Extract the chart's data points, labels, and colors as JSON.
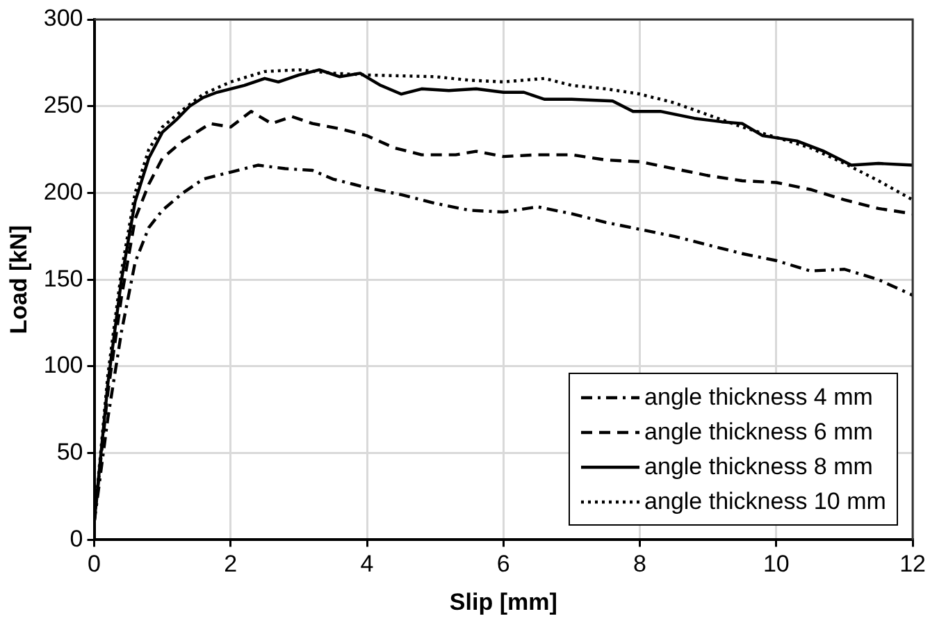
{
  "chart_data": {
    "type": "line",
    "xlabel": "Slip [mm]",
    "ylabel": "Load [kN]",
    "xlim": [
      0,
      12
    ],
    "xticks": [
      0,
      2,
      4,
      6,
      8,
      10,
      12
    ],
    "ylim": [
      0,
      300
    ],
    "yticks": [
      0,
      50,
      100,
      150,
      200,
      250,
      300
    ],
    "grid": true,
    "legend": "bottom right",
    "marker": "none",
    "series": [
      {
        "name": "angle thickness 4 mm",
        "color": "#000000",
        "line_style": "dashdot",
        "x": [
          0,
          0.2,
          0.4,
          0.6,
          0.8,
          1,
          1.3,
          1.6,
          2,
          2.4,
          2.8,
          3.2,
          3.5,
          4,
          4.5,
          5,
          5.5,
          6,
          6.5,
          7,
          7.5,
          8,
          8.5,
          9,
          9.5,
          10,
          10.5,
          11,
          11.5,
          12
        ],
        "values": [
          10,
          70,
          120,
          160,
          180,
          190,
          200,
          208,
          212,
          216,
          214,
          213,
          208,
          203,
          199,
          194,
          190,
          189,
          192,
          188,
          183,
          179,
          175,
          170,
          165,
          161,
          155,
          156,
          150,
          141
        ]
      },
      {
        "name": "angle thickness 6 mm",
        "color": "#000000",
        "line_style": "dashed",
        "x": [
          0,
          0.2,
          0.4,
          0.6,
          0.8,
          1,
          1.3,
          1.7,
          2,
          2.3,
          2.6,
          2.9,
          3.2,
          3.6,
          4,
          4.4,
          4.8,
          5.3,
          5.6,
          6,
          6.5,
          7,
          7.5,
          8,
          8.5,
          9,
          9.5,
          10,
          10.5,
          11,
          11.5,
          12
        ],
        "values": [
          10,
          85,
          140,
          185,
          205,
          220,
          230,
          240,
          238,
          247,
          240,
          244,
          240,
          237,
          233,
          226,
          222,
          222,
          224,
          221,
          222,
          222,
          219,
          218,
          214,
          210,
          207,
          206,
          202,
          196,
          191,
          188
        ]
      },
      {
        "name": "angle thickness 8 mm",
        "color": "#000000",
        "line_style": "solid",
        "x": [
          0,
          0.2,
          0.4,
          0.6,
          0.8,
          1,
          1.2,
          1.4,
          1.6,
          1.8,
          2,
          2.2,
          2.5,
          2.7,
          3,
          3.3,
          3.6,
          3.9,
          4.2,
          4.5,
          4.8,
          5.2,
          5.6,
          6,
          6.3,
          6.6,
          7,
          7.6,
          7.9,
          8.3,
          8.8,
          9.2,
          9.5,
          9.8,
          10.3,
          10.7,
          11.1,
          11.5,
          12
        ],
        "values": [
          10,
          90,
          150,
          195,
          220,
          235,
          242,
          250,
          255,
          258,
          260,
          262,
          266,
          264,
          268,
          271,
          267,
          269,
          262,
          257,
          260,
          259,
          260,
          258,
          258,
          254,
          254,
          253,
          247,
          247,
          243,
          241,
          240,
          233,
          230,
          224,
          216,
          217,
          216
        ]
      },
      {
        "name": "angle thickness 10 mm",
        "color": "#000000",
        "line_style": "dotted",
        "x": [
          0,
          0.2,
          0.4,
          0.6,
          0.8,
          1,
          1.3,
          1.6,
          2,
          2.5,
          3,
          3.5,
          4,
          5,
          5.5,
          6,
          6.6,
          7,
          7.5,
          8,
          8.5,
          9,
          9.5,
          10,
          10.5,
          11,
          11.5,
          12
        ],
        "values": [
          10,
          95,
          155,
          200,
          225,
          238,
          248,
          257,
          264,
          270,
          271,
          269,
          268,
          267,
          265,
          264,
          266,
          262,
          260,
          257,
          252,
          245,
          238,
          232,
          226,
          217,
          207,
          196
        ]
      }
    ]
  }
}
